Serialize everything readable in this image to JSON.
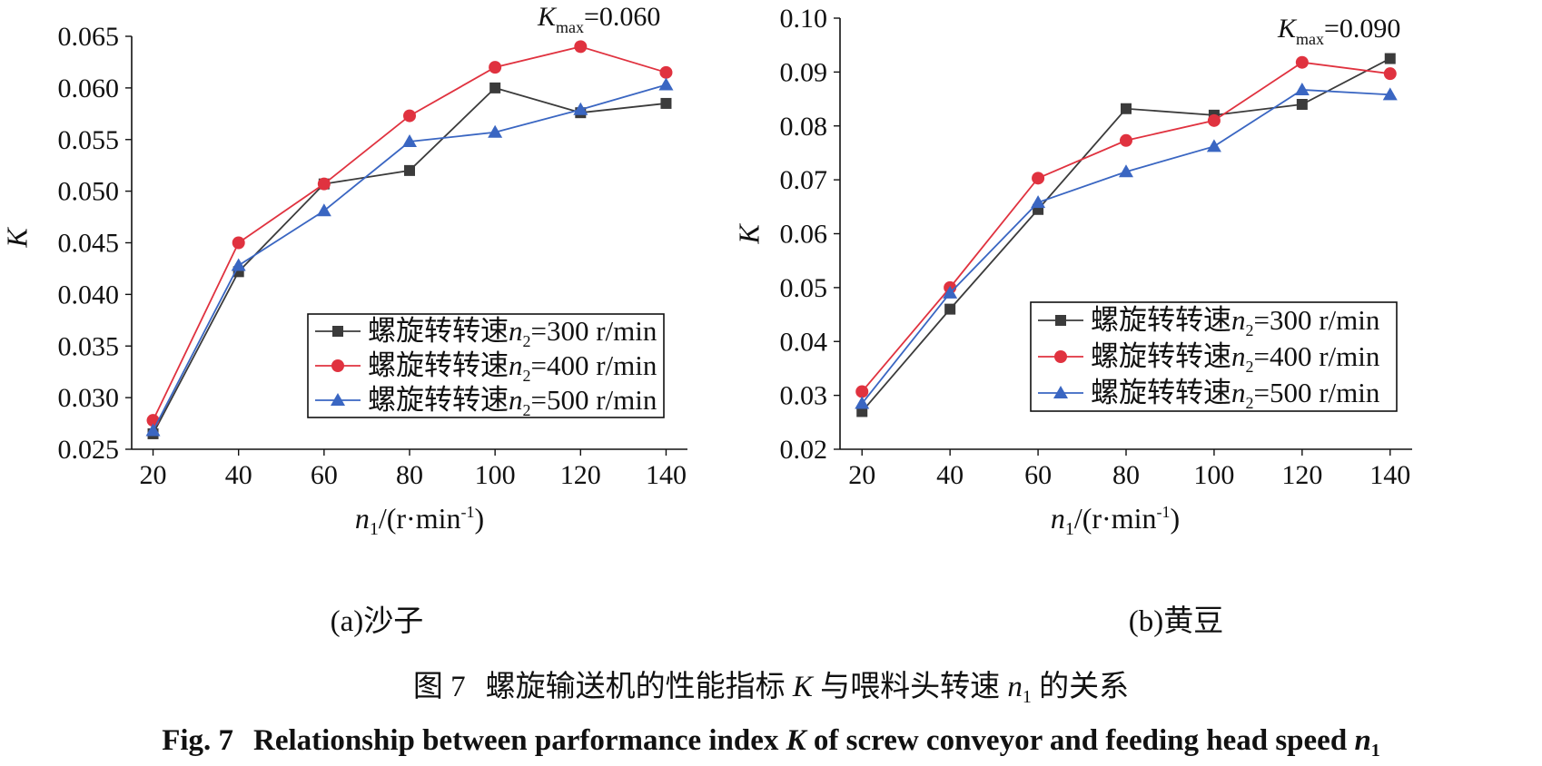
{
  "chart_data": [
    {
      "type": "line",
      "panel_label": "(a)沙子",
      "x": [
        20,
        40,
        60,
        80,
        100,
        120,
        140
      ],
      "xlim": [
        15,
        145
      ],
      "ylim": [
        0.025,
        0.065
      ],
      "y_ticks": [
        "0.025",
        "0.030",
        "0.035",
        "0.040",
        "0.045",
        "0.050",
        "0.055",
        "0.060",
        "0.065"
      ],
      "x_ticks": [
        "20",
        "40",
        "60",
        "80",
        "100",
        "120",
        "140"
      ],
      "ylabel": "K",
      "xlabel": {
        "var": "n",
        "sub": "1",
        "unit": "/(r·min",
        "sup": "-1",
        "close": ")"
      },
      "annotation": {
        "var": "K",
        "sub": "max",
        "text": "=0.060"
      },
      "legend_position": "lower-right",
      "grid": false,
      "series": [
        {
          "name": "螺旋转转速n2=300 r/min",
          "label": "螺旋转转速",
          "sub": "2",
          "value_text": "=300 r/min",
          "color": "#3b3b3b",
          "marker": "square",
          "values": [
            0.0265,
            0.0422,
            0.0507,
            0.052,
            0.06,
            0.0576,
            0.0585
          ]
        },
        {
          "name": "螺旋转转速n2=400 r/min",
          "label": "螺旋转转速",
          "sub": "2",
          "value_text": "=400 r/min",
          "color": "#e0323f",
          "marker": "circle",
          "values": [
            0.0278,
            0.045,
            0.0507,
            0.0573,
            0.062,
            0.064,
            0.0615
          ]
        },
        {
          "name": "螺旋转转速n2=500 r/min",
          "label": "螺旋转转速",
          "sub": "2",
          "value_text": "=500 r/min",
          "color": "#3a66c2",
          "marker": "triangle",
          "values": [
            0.0268,
            0.0428,
            0.0481,
            0.0548,
            0.0557,
            0.0579,
            0.0603
          ]
        }
      ]
    },
    {
      "type": "line",
      "panel_label": "(b)黄豆",
      "x": [
        20,
        40,
        60,
        80,
        100,
        120,
        140
      ],
      "xlim": [
        15,
        145
      ],
      "ylim": [
        0.02,
        0.1
      ],
      "y_ticks": [
        "0.02",
        "0.03",
        "0.04",
        "0.05",
        "0.06",
        "0.07",
        "0.08",
        "0.09",
        "0.10"
      ],
      "x_ticks": [
        "20",
        "40",
        "60",
        "80",
        "100",
        "120",
        "140"
      ],
      "ylabel": "K",
      "xlabel": {
        "var": "n",
        "sub": "1",
        "unit": "/(r·min",
        "sup": "-1",
        "close": ")"
      },
      "annotation": {
        "var": "K",
        "sub": "max",
        "text": "=0.090"
      },
      "legend_position": "lower-right",
      "grid": false,
      "series": [
        {
          "name": "螺旋转转速n2=300 r/min",
          "label": "螺旋转转速",
          "sub": "2",
          "value_text": "=300 r/min",
          "color": "#3b3b3b",
          "marker": "square",
          "values": [
            0.027,
            0.046,
            0.0645,
            0.0832,
            0.082,
            0.084,
            0.0925
          ]
        },
        {
          "name": "螺旋转转速n2=400 r/min",
          "label": "螺旋转转速",
          "sub": "2",
          "value_text": "=400 r/min",
          "color": "#e0323f",
          "marker": "circle",
          "values": [
            0.0307,
            0.05,
            0.0703,
            0.0773,
            0.081,
            0.0918,
            0.0897
          ]
        },
        {
          "name": "螺旋转转速n2=500 r/min",
          "label": "螺旋转转速",
          "sub": "2",
          "value_text": "=500 r/min",
          "color": "#3a66c2",
          "marker": "triangle",
          "values": [
            0.0285,
            0.049,
            0.0658,
            0.0715,
            0.0762,
            0.0867,
            0.0858
          ]
        }
      ]
    }
  ],
  "caption": {
    "cn_prefix": "图 7",
    "cn_text_a": "螺旋输送机的性能指标 ",
    "cn_var_k": "K",
    "cn_text_b": " 与喂料头转速 ",
    "cn_var_n": "n",
    "cn_sub": "1",
    "cn_text_c": " 的关系",
    "en_prefix": "Fig. 7",
    "en_text_a": "Relationship between parformance index ",
    "en_var_k": "K",
    "en_text_b": " of screw conveyor and feeding head speed ",
    "en_var_n": "n",
    "en_sub": "1"
  }
}
